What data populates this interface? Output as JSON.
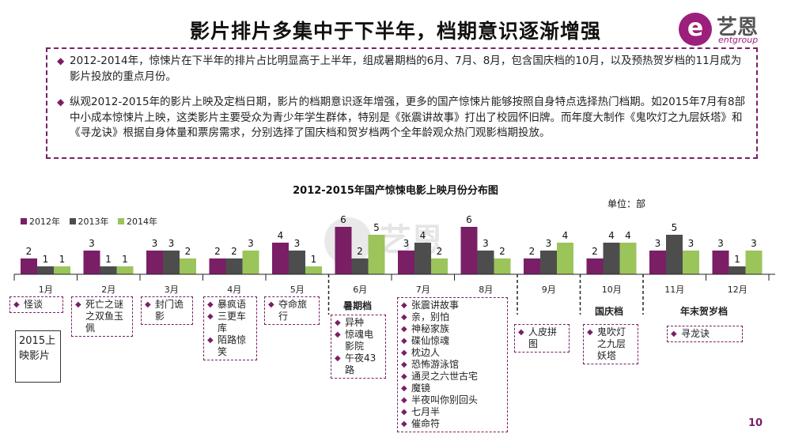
{
  "title": "影片排片多集中于下半年，档期意识逐渐增强",
  "logo": {
    "mark": "e",
    "cn": "艺恩",
    "en": "entgroup"
  },
  "summary": [
    "2012-2014年，惊悚片在下半年的排片占比明显高于上半年，组成暑期档的6月、7月、8月，包含国庆档的10月，以及预热贺岁档的11月成为影片投放的重点月份。",
    "纵观2012-2015年的影片上映及定档日期，影片的档期意识逐年增强，更多的国产惊悚片能够按照自身特点选择热门档期。如2015年7月有8部中小成本惊悚片上映，这类影片主要受众为青少年学生群体，特别是《张震讲故事》打出了校园怀旧牌。而年度大制作《鬼吹灯之九层妖塔》和《寻龙诀》根据自身体量和票房需求，分别选择了国庆档和贺岁档两个全年龄观众热门观影档期投放。"
  ],
  "unit": "单位：部",
  "watermark": {
    "cn": "艺恩",
    "en": "entgroup"
  },
  "colors": {
    "s2012": "#7a1f66",
    "s2013": "#4d4d4d",
    "s2014": "#9bc45b",
    "accent": "#7a1f66"
  },
  "chart_data": {
    "type": "bar",
    "title": "2012-2015年国产惊悚电影上映月份分布图",
    "categories": [
      "1月",
      "2月",
      "3月",
      "4月",
      "5月",
      "6月",
      "7月",
      "8月",
      "9月",
      "10月",
      "11月",
      "12月"
    ],
    "series": [
      {
        "name": "2012年",
        "values": [
          2,
          3,
          3,
          2,
          4,
          6,
          3,
          6,
          2,
          2,
          3,
          3
        ]
      },
      {
        "name": "2013年",
        "values": [
          1,
          1,
          3,
          2,
          3,
          2,
          4,
          3,
          3,
          4,
          5,
          1
        ]
      },
      {
        "name": "2014年",
        "values": [
          1,
          1,
          2,
          3,
          1,
          5,
          2,
          2,
          4,
          4,
          3,
          3
        ]
      }
    ],
    "ylim": [
      0,
      6
    ],
    "legend": "top-left",
    "seasons": [
      {
        "label": "暑期档",
        "months": [
          "6月",
          "7月",
          "8月"
        ]
      },
      {
        "label": "国庆档",
        "months": [
          "10月"
        ]
      },
      {
        "label": "年末贺岁档",
        "months": [
          "11月",
          "12月"
        ]
      }
    ]
  },
  "label_2015": "2015上映影片",
  "films_2015": {
    "1月": [
      "怪谈"
    ],
    "2月": [
      "死亡之谜之双鱼玉佩"
    ],
    "3月": [
      "封门诡影"
    ],
    "4月": [
      "暴疯语",
      "三更车库",
      "陌路惊笑"
    ],
    "5月": [
      "夺命旅行"
    ],
    "6月": [
      "异种",
      "惊魂电影院",
      "午夜43路"
    ],
    "7-8月": [
      "张震讲故事",
      "亲，别怕",
      "神秘家族",
      "碟仙惊魂",
      "枕边人",
      "恐怖游泳馆",
      "通灵之六世古宅",
      "魔镜",
      "半夜叫你别回头",
      "七月半",
      "催命符"
    ],
    "9月": [
      "人皮拼图"
    ],
    "10月": [
      "鬼吹灯之九层妖塔"
    ],
    "11-12月": [
      "寻龙诀"
    ]
  },
  "page_number": "10"
}
